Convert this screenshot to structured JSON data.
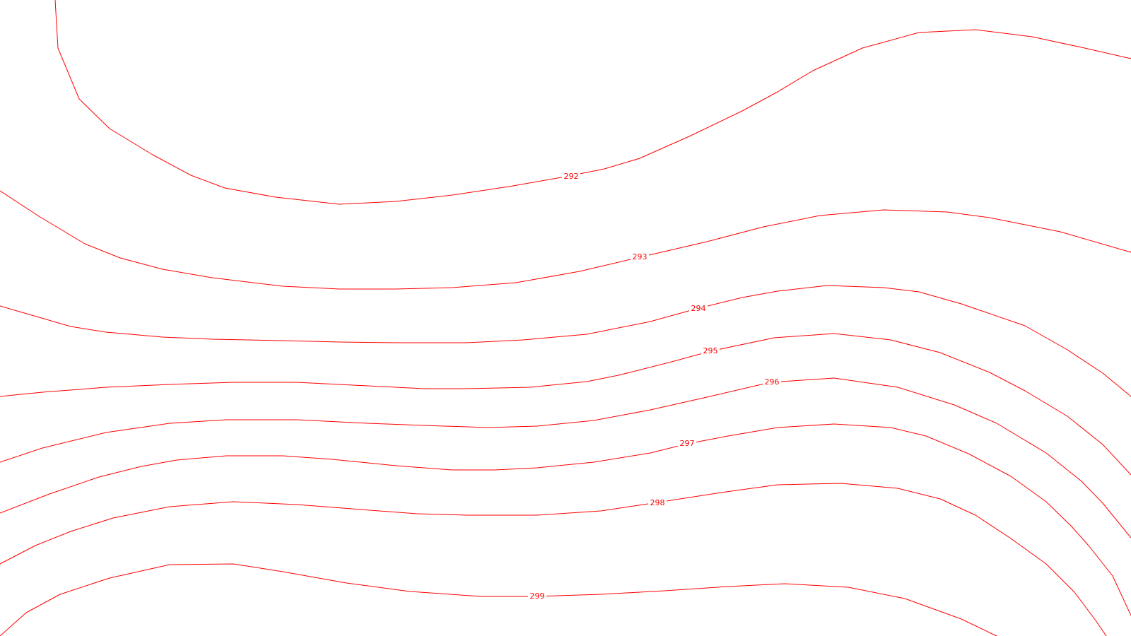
{
  "map": {
    "line_color": "#ff0000",
    "background_color": "#ffffff",
    "contours": [
      {
        "id": "c292",
        "label": "292"
      },
      {
        "id": "c293",
        "label": "293"
      },
      {
        "id": "c294",
        "label": "294"
      },
      {
        "id": "c295",
        "label": "295"
      },
      {
        "id": "c296",
        "label": "296"
      },
      {
        "id": "c297",
        "label": "297"
      },
      {
        "id": "c298",
        "label": "298"
      },
      {
        "id": "c299",
        "label": "299"
      },
      {
        "id": "c295b",
        "label": ""
      },
      {
        "id": "c296b",
        "label": ""
      },
      {
        "id": "c297b",
        "label": ""
      },
      {
        "id": "c298b",
        "label": ""
      }
    ]
  }
}
